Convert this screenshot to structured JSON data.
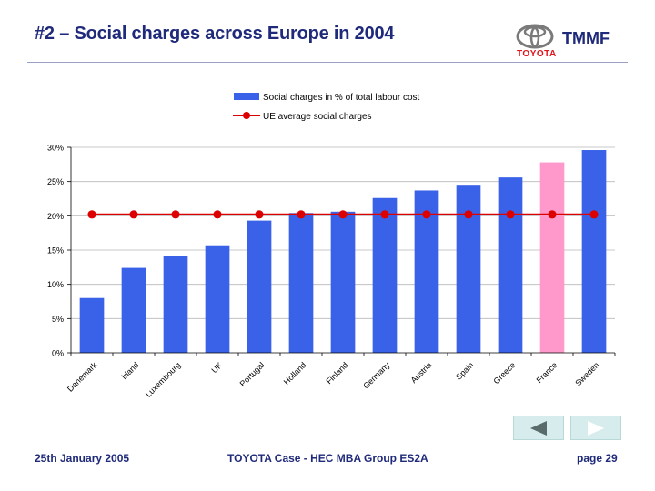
{
  "slide": {
    "title": "#2 – Social charges across Europe in 2004",
    "logo_word": "TOYOTA",
    "logo_tm": "TMMF"
  },
  "footer": {
    "date": "25th January 2005",
    "center": "TOYOTA Case - HEC MBA Group ES2A",
    "page": "page 29"
  },
  "nav": {
    "prev_icon": "triangle-left-icon",
    "next_icon": "triangle-right-icon"
  },
  "colors": {
    "bar": "#3a62e8",
    "bar_highlight": "#ff99cc",
    "line": "#dd0000",
    "title": "#1f2a7a"
  },
  "chart_data": {
    "type": "bar",
    "categories": [
      "Danemark",
      "Irland",
      "Luxembourg",
      "UK",
      "Portugal",
      "Holland",
      "Finland",
      "Germany",
      "Austria",
      "Spain",
      "Greece",
      "France",
      "Sweden"
    ],
    "series": [
      {
        "name": "Social charges in % of total labour cost",
        "type": "bar",
        "values": [
          8.0,
          12.4,
          14.2,
          15.7,
          19.3,
          20.4,
          20.6,
          22.6,
          23.7,
          24.4,
          25.6,
          27.8,
          29.6
        ],
        "highlight_index": 11
      },
      {
        "name": "UE average social charges",
        "type": "line",
        "values": [
          20.2,
          20.2,
          20.2,
          20.2,
          20.2,
          20.2,
          20.2,
          20.2,
          20.2,
          20.2,
          20.2,
          20.2,
          20.2
        ]
      }
    ],
    "yticks": [
      "0%",
      "5%",
      "10%",
      "15%",
      "20%",
      "25%",
      "30%"
    ],
    "ylim": [
      0,
      30
    ],
    "grid": true,
    "legend_position": "top"
  }
}
